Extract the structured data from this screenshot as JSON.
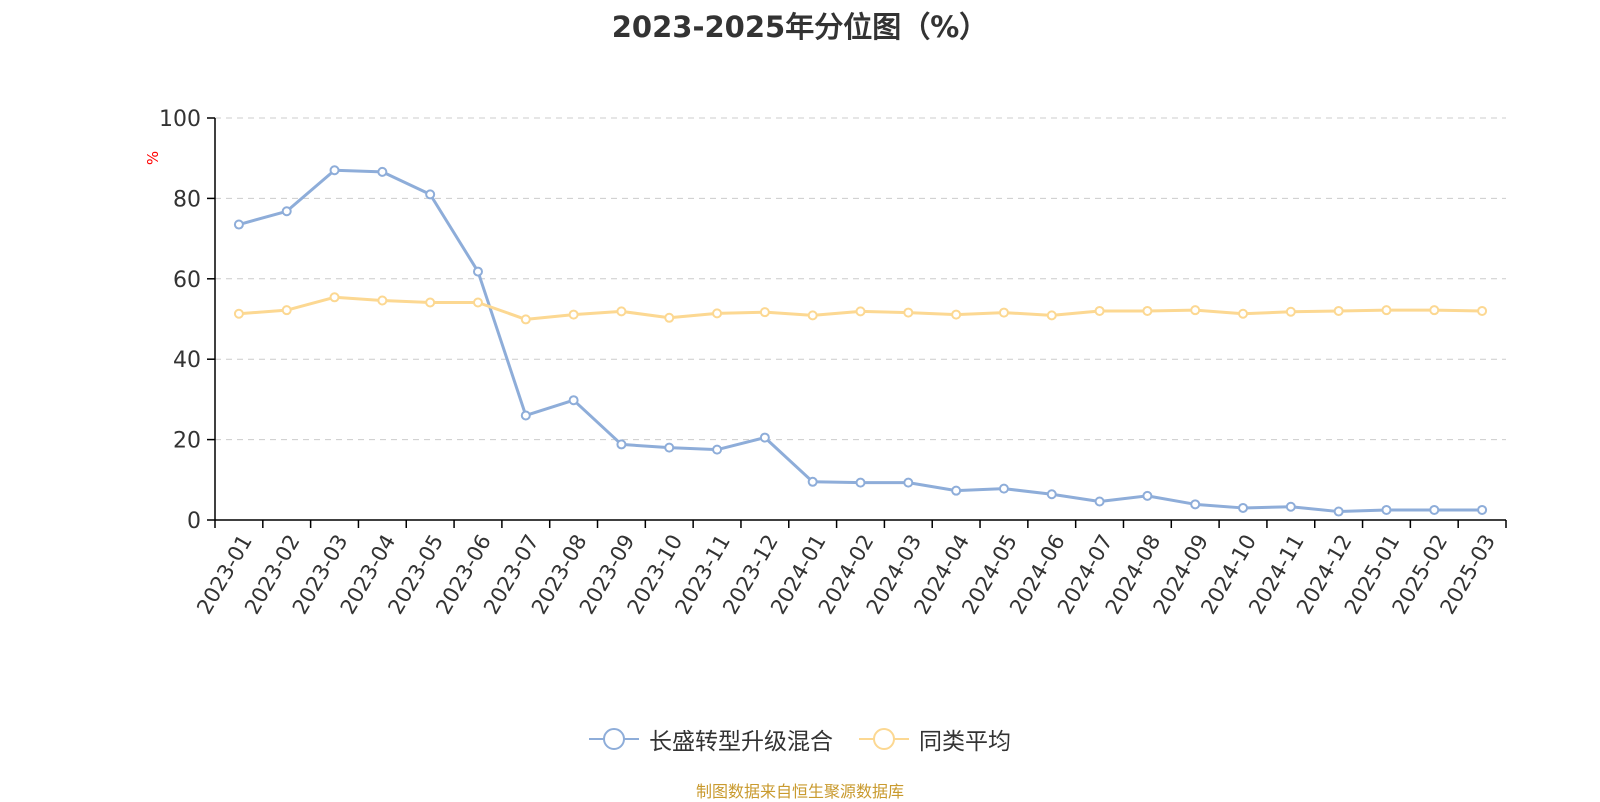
{
  "title": "2023-2025年分位图（%）",
  "source_note": "制图数据来自恒生聚源数据库",
  "colors": {
    "series_fund": "#8eadd9",
    "series_avg": "#fcd892",
    "axis": "#000000",
    "grid": "#cccccc",
    "ylabel": "#ff0000",
    "text": "#333333",
    "source": "#c99a2e"
  },
  "chart_data": {
    "type": "line",
    "ylabel": "%",
    "ylim": [
      0,
      100
    ],
    "yticks": [
      0,
      20,
      40,
      60,
      80,
      100
    ],
    "grid": true,
    "legend_position": "bottom",
    "categories": [
      "2023-01",
      "2023-02",
      "2023-03",
      "2023-04",
      "2023-05",
      "2023-06",
      "2023-07",
      "2023-08",
      "2023-09",
      "2023-10",
      "2023-11",
      "2023-12",
      "2024-01",
      "2024-02",
      "2024-03",
      "2024-04",
      "2024-05",
      "2024-06",
      "2024-07",
      "2024-08",
      "2024-09",
      "2024-10",
      "2024-11",
      "2024-12",
      "2025-01",
      "2025-02",
      "2025-03"
    ],
    "series": [
      {
        "name": "长盛转型升级混合",
        "values": [
          73.5,
          76.8,
          87.0,
          86.6,
          81.0,
          61.8,
          26.0,
          29.8,
          18.8,
          18.0,
          17.5,
          20.5,
          9.5,
          9.3,
          9.3,
          7.3,
          7.8,
          6.4,
          4.6,
          6.0,
          3.9,
          3.0,
          3.3,
          2.1,
          2.5,
          2.5,
          2.5
        ]
      },
      {
        "name": "同类平均",
        "values": [
          51.3,
          52.2,
          55.4,
          54.6,
          54.1,
          54.1,
          49.9,
          51.1,
          51.9,
          50.3,
          51.4,
          51.7,
          50.9,
          51.9,
          51.6,
          51.1,
          51.6,
          50.9,
          52.0,
          52.0,
          52.2,
          51.3,
          51.8,
          52.0,
          52.2,
          52.2,
          52.0
        ]
      }
    ]
  }
}
